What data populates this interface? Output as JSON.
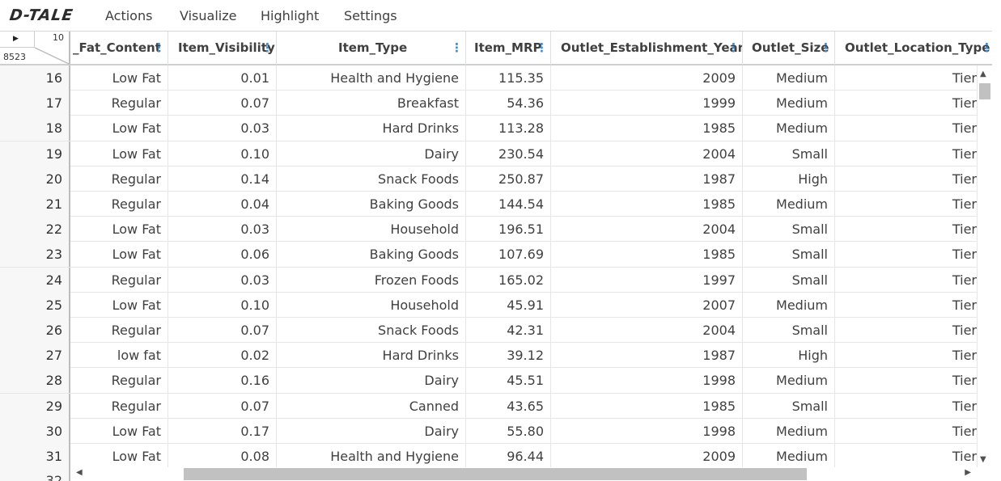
{
  "app": {
    "logo": "D-TALE"
  },
  "menu": {
    "items": [
      "Actions",
      "Visualize",
      "Highlight",
      "Settings"
    ]
  },
  "grid": {
    "corner": {
      "column_count": "10",
      "row_count": "8523"
    },
    "columns": [
      "_Fat_Content",
      "Item_Visibility",
      "Item_Type",
      "Item_MRP",
      "Outlet_Establishment_Year",
      "Outlet_Size",
      "Outlet_Location_Type"
    ],
    "column_menu_icon": "⋮",
    "rows": [
      {
        "index": "16",
        "fat": "Low Fat",
        "vis": "0.01",
        "type": "Health and Hygiene",
        "mrp": "115.35",
        "year": "2009",
        "size": "Medium",
        "loc": "Tier"
      },
      {
        "index": "17",
        "fat": "Regular",
        "vis": "0.07",
        "type": "Breakfast",
        "mrp": "54.36",
        "year": "1999",
        "size": "Medium",
        "loc": "Tier"
      },
      {
        "index": "18",
        "fat": "Low Fat",
        "vis": "0.03",
        "type": "Hard Drinks",
        "mrp": "113.28",
        "year": "1985",
        "size": "Medium",
        "loc": "Tier"
      },
      {
        "index": "19",
        "fat": "Low Fat",
        "vis": "0.10",
        "type": "Dairy",
        "mrp": "230.54",
        "year": "2004",
        "size": "Small",
        "loc": "Tier"
      },
      {
        "index": "20",
        "fat": "Regular",
        "vis": "0.14",
        "type": "Snack Foods",
        "mrp": "250.87",
        "year": "1987",
        "size": "High",
        "loc": "Tier"
      },
      {
        "index": "21",
        "fat": "Regular",
        "vis": "0.04",
        "type": "Baking Goods",
        "mrp": "144.54",
        "year": "1985",
        "size": "Medium",
        "loc": "Tier"
      },
      {
        "index": "22",
        "fat": "Low Fat",
        "vis": "0.03",
        "type": "Household",
        "mrp": "196.51",
        "year": "2004",
        "size": "Small",
        "loc": "Tier"
      },
      {
        "index": "23",
        "fat": "Low Fat",
        "vis": "0.06",
        "type": "Baking Goods",
        "mrp": "107.69",
        "year": "1985",
        "size": "Small",
        "loc": "Tier"
      },
      {
        "index": "24",
        "fat": "Regular",
        "vis": "0.03",
        "type": "Frozen Foods",
        "mrp": "165.02",
        "year": "1997",
        "size": "Small",
        "loc": "Tier"
      },
      {
        "index": "25",
        "fat": "Low Fat",
        "vis": "0.10",
        "type": "Household",
        "mrp": "45.91",
        "year": "2007",
        "size": "Medium",
        "loc": "Tier"
      },
      {
        "index": "26",
        "fat": "Regular",
        "vis": "0.07",
        "type": "Snack Foods",
        "mrp": "42.31",
        "year": "2004",
        "size": "Small",
        "loc": "Tier"
      },
      {
        "index": "27",
        "fat": "low fat",
        "vis": "0.02",
        "type": "Hard Drinks",
        "mrp": "39.12",
        "year": "1987",
        "size": "High",
        "loc": "Tier"
      },
      {
        "index": "28",
        "fat": "Regular",
        "vis": "0.16",
        "type": "Dairy",
        "mrp": "45.51",
        "year": "1998",
        "size": "Medium",
        "loc": "Tier"
      },
      {
        "index": "29",
        "fat": "Regular",
        "vis": "0.07",
        "type": "Canned",
        "mrp": "43.65",
        "year": "1985",
        "size": "Small",
        "loc": "Tier"
      },
      {
        "index": "30",
        "fat": "Low Fat",
        "vis": "0.17",
        "type": "Dairy",
        "mrp": "55.80",
        "year": "1998",
        "size": "Medium",
        "loc": "Tier"
      },
      {
        "index": "31",
        "fat": "Low Fat",
        "vis": "0.08",
        "type": "Health and Hygiene",
        "mrp": "96.44",
        "year": "2009",
        "size": "Medium",
        "loc": "Tier"
      }
    ],
    "partial_row_index": "32"
  },
  "colors": {
    "accent": "#3b8fd9",
    "scroll_thumb": "#c1c1c1",
    "index_bg": "#f7f7f7"
  },
  "icons": {
    "corner_play": "play-icon",
    "column_menu": "kebab-menu-icon",
    "scroll_up": "arrow-up-icon",
    "scroll_down": "arrow-down-icon",
    "scroll_left": "arrow-left-icon",
    "scroll_right": "arrow-right-icon"
  }
}
